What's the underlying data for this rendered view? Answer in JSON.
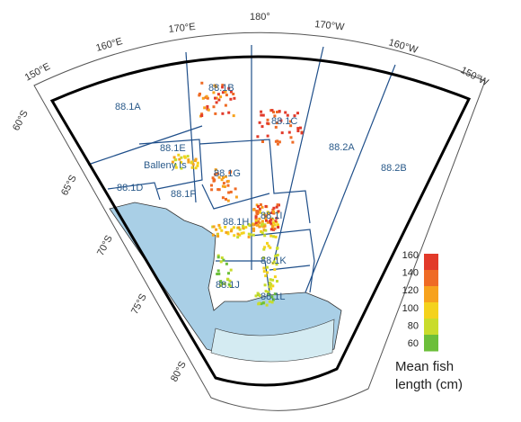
{
  "graticule": {
    "longitudes": [
      "150°E",
      "160°E",
      "170°E",
      "180°",
      "170°W",
      "160°W",
      "150°W"
    ],
    "latitudes": [
      "60°S",
      "65°S",
      "70°S",
      "75°S",
      "80°S"
    ]
  },
  "areas": [
    "88.1A",
    "88.1B",
    "88.1C",
    "88.1D",
    "88.1E",
    "88.1F",
    "88.1G",
    "88.1H",
    "88.1I",
    "88.1J",
    "88.1K",
    "88.1L",
    "88.2A",
    "88.2B"
  ],
  "place_labels": [
    "Balleny Is"
  ],
  "legend": {
    "title_line1": "Mean fish",
    "title_line2": "length (cm)",
    "ticks": [
      "160",
      "140",
      "120",
      "100",
      "80",
      "60"
    ],
    "colors": [
      "#e23a2a",
      "#ef6b25",
      "#f7a21d",
      "#f4d21c",
      "#c9dc2c",
      "#6cbf3a"
    ]
  },
  "colors": {
    "ocean": "#ffffff",
    "land": "#a9cfe6",
    "ice_shelf": "#d4ebf2",
    "boundary": "#1f4f8a",
    "frame": "#000000"
  }
}
